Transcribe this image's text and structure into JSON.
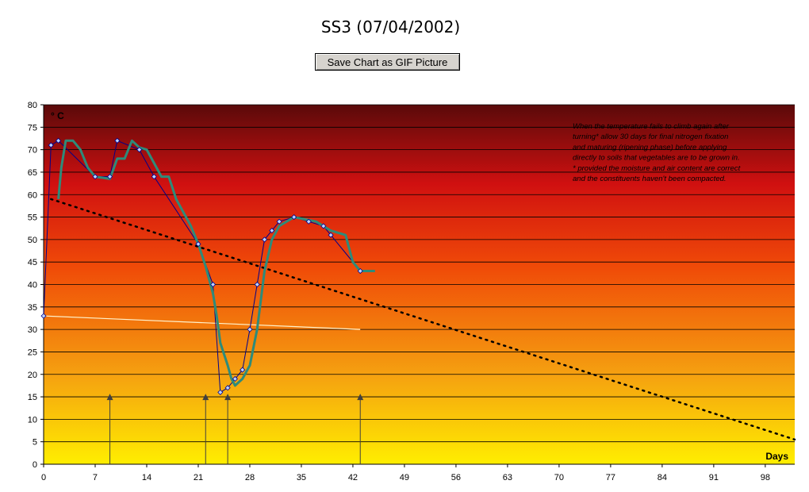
{
  "page": {
    "title": "SS3 (07/04/2002)",
    "save_button_label": "Save Chart as GIF Picture"
  },
  "chart_data": {
    "type": "line",
    "ylabel": "° C",
    "xlabel": "Days",
    "xlim": [
      0,
      102
    ],
    "ylim": [
      0,
      80
    ],
    "x_ticks": [
      0,
      7,
      14,
      21,
      28,
      35,
      42,
      49,
      56,
      63,
      70,
      77,
      84,
      91,
      98
    ],
    "y_ticks": [
      0,
      5,
      10,
      15,
      20,
      25,
      30,
      35,
      40,
      45,
      50,
      55,
      60,
      65,
      70,
      75,
      80
    ],
    "grid": "horizontal",
    "background": "gradient dark red (top) to yellow (bottom)",
    "annotation": [
      "When the temperature fails to climb again after",
      "turning* allow 30 days for final nitrogen fixation",
      "and maturing (ripening phase) before applying",
      "directly to soils that vegetables are to be grown in.",
      "* provided the moisture and air content are correct",
      "and the constituents haven't been compacted."
    ],
    "turning_markers": {
      "days": [
        9,
        22,
        25,
        43
      ],
      "value": 15
    },
    "series": [
      {
        "role": "measured temperature",
        "color": "#00008b",
        "marker": "diamond",
        "points": [
          [
            0,
            33
          ],
          [
            1,
            71
          ],
          [
            2,
            72
          ],
          [
            7,
            64
          ],
          [
            9,
            64
          ],
          [
            10,
            72
          ],
          [
            13,
            70
          ],
          [
            15,
            64
          ],
          [
            21,
            49
          ],
          [
            23,
            40
          ],
          [
            24,
            16
          ],
          [
            25,
            17
          ],
          [
            26,
            19
          ],
          [
            27,
            21
          ],
          [
            28,
            30
          ],
          [
            29,
            40
          ],
          [
            30,
            50
          ],
          [
            31,
            52
          ],
          [
            32,
            54
          ],
          [
            34,
            55
          ],
          [
            36,
            54
          ],
          [
            38,
            53
          ],
          [
            39,
            51
          ],
          [
            43,
            43
          ]
        ]
      },
      {
        "role": "moving average trend",
        "color": "#2e8b7a",
        "points": [
          [
            2,
            59
          ],
          [
            2.4,
            66
          ],
          [
            3,
            72
          ],
          [
            4,
            72
          ],
          [
            5,
            70
          ],
          [
            6,
            66
          ],
          [
            7,
            64
          ],
          [
            9,
            63.5
          ],
          [
            10,
            68
          ],
          [
            11,
            68
          ],
          [
            12,
            72
          ],
          [
            13,
            70.5
          ],
          [
            14,
            70
          ],
          [
            15,
            67
          ],
          [
            16,
            64
          ],
          [
            17,
            64
          ],
          [
            18,
            59
          ],
          [
            20,
            53
          ],
          [
            21,
            49
          ],
          [
            22,
            44
          ],
          [
            23,
            38
          ],
          [
            23.5,
            33
          ],
          [
            24,
            27
          ],
          [
            25,
            22
          ],
          [
            25.5,
            19
          ],
          [
            26,
            17.5
          ],
          [
            27,
            19
          ],
          [
            28,
            22
          ],
          [
            29,
            30
          ],
          [
            30,
            43
          ],
          [
            31,
            50
          ],
          [
            32,
            53
          ],
          [
            34,
            55
          ],
          [
            37,
            54
          ],
          [
            39,
            52
          ],
          [
            41,
            51
          ],
          [
            42,
            45
          ],
          [
            43,
            43
          ],
          [
            44,
            43
          ],
          [
            45,
            43
          ]
        ]
      },
      {
        "role": "linear trend",
        "color": "#000000",
        "style": "dotted",
        "points": [
          [
            1,
            59
          ],
          [
            102,
            5.5
          ]
        ]
      },
      {
        "role": "ambient reference",
        "color": "#fff2cc",
        "points": [
          [
            0,
            33
          ],
          [
            43,
            30
          ]
        ]
      }
    ]
  }
}
